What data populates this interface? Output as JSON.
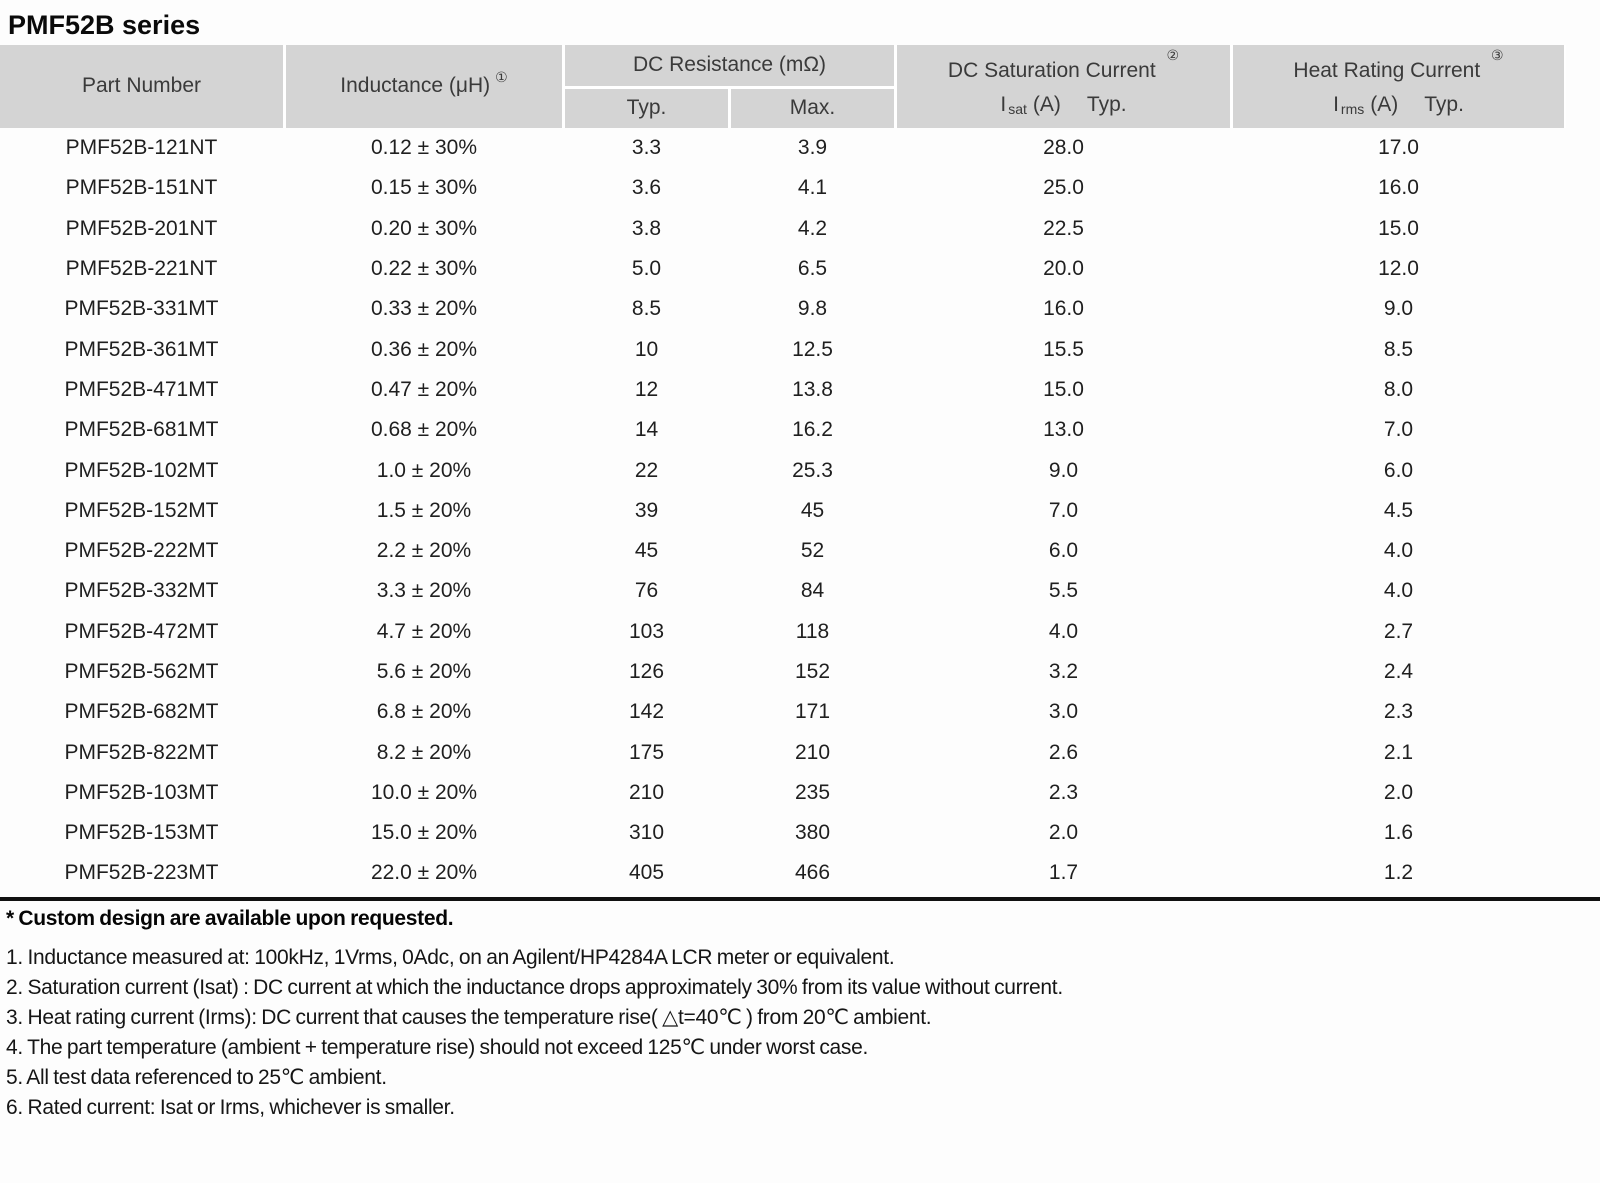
{
  "page": {
    "title": "PMF52B series"
  },
  "colors": {
    "header_bg": "#d4d4d4",
    "body_text": "#1f1f1f",
    "divider": "#111111"
  },
  "table": {
    "headers": {
      "part_number": "Part Number",
      "inductance": "Inductance (μH)",
      "inductance_note_ref": "①",
      "dc_resistance_group": "DC Resistance (mΩ)",
      "dcr_typ": "Typ.",
      "dcr_max": "Max.",
      "dc_saturation": "DC Saturation Current",
      "dc_saturation_note_ref": "②",
      "isat_symbol": "I",
      "isat_sub": "sat",
      "isat_unit": "(A)",
      "isat_typ": "Typ.",
      "heat_rating": "Heat Rating Current",
      "heat_rating_note_ref": "③",
      "irms_symbol": "I",
      "irms_sub": "rms",
      "irms_unit": "(A)",
      "irms_typ": "Typ."
    },
    "rows": [
      {
        "part_number": "PMF52B-121NT",
        "inductance": "0.12 ± 30%",
        "dcr_typ": "3.3",
        "dcr_max": "3.9",
        "isat": "28.0",
        "irms": "17.0"
      },
      {
        "part_number": "PMF52B-151NT",
        "inductance": "0.15 ± 30%",
        "dcr_typ": "3.6",
        "dcr_max": "4.1",
        "isat": "25.0",
        "irms": "16.0"
      },
      {
        "part_number": "PMF52B-201NT",
        "inductance": "0.20 ± 30%",
        "dcr_typ": "3.8",
        "dcr_max": "4.2",
        "isat": "22.5",
        "irms": "15.0"
      },
      {
        "part_number": "PMF52B-221NT",
        "inductance": "0.22 ± 30%",
        "dcr_typ": "5.0",
        "dcr_max": "6.5",
        "isat": "20.0",
        "irms": "12.0"
      },
      {
        "part_number": "PMF52B-331MT",
        "inductance": "0.33 ± 20%",
        "dcr_typ": "8.5",
        "dcr_max": "9.8",
        "isat": "16.0",
        "irms": "9.0"
      },
      {
        "part_number": "PMF52B-361MT",
        "inductance": "0.36 ± 20%",
        "dcr_typ": "10",
        "dcr_max": "12.5",
        "isat": "15.5",
        "irms": "8.5"
      },
      {
        "part_number": "PMF52B-471MT",
        "inductance": "0.47 ± 20%",
        "dcr_typ": "12",
        "dcr_max": "13.8",
        "isat": "15.0",
        "irms": "8.0"
      },
      {
        "part_number": "PMF52B-681MT",
        "inductance": "0.68 ± 20%",
        "dcr_typ": "14",
        "dcr_max": "16.2",
        "isat": "13.0",
        "irms": "7.0"
      },
      {
        "part_number": "PMF52B-102MT",
        "inductance": "1.0 ± 20%",
        "dcr_typ": "22",
        "dcr_max": "25.3",
        "isat": "9.0",
        "irms": "6.0"
      },
      {
        "part_number": "PMF52B-152MT",
        "inductance": "1.5 ± 20%",
        "dcr_typ": "39",
        "dcr_max": "45",
        "isat": "7.0",
        "irms": "4.5"
      },
      {
        "part_number": "PMF52B-222MT",
        "inductance": "2.2 ± 20%",
        "dcr_typ": "45",
        "dcr_max": "52",
        "isat": "6.0",
        "irms": "4.0"
      },
      {
        "part_number": "PMF52B-332MT",
        "inductance": "3.3 ± 20%",
        "dcr_typ": "76",
        "dcr_max": "84",
        "isat": "5.5",
        "irms": "4.0"
      },
      {
        "part_number": "PMF52B-472MT",
        "inductance": "4.7 ± 20%",
        "dcr_typ": "103",
        "dcr_max": "118",
        "isat": "4.0",
        "irms": "2.7"
      },
      {
        "part_number": "PMF52B-562MT",
        "inductance": "5.6 ± 20%",
        "dcr_typ": "126",
        "dcr_max": "152",
        "isat": "3.2",
        "irms": "2.4"
      },
      {
        "part_number": "PMF52B-682MT",
        "inductance": "6.8 ± 20%",
        "dcr_typ": "142",
        "dcr_max": "171",
        "isat": "3.0",
        "irms": "2.3"
      },
      {
        "part_number": "PMF52B-822MT",
        "inductance": "8.2 ± 20%",
        "dcr_typ": "175",
        "dcr_max": "210",
        "isat": "2.6",
        "irms": "2.1"
      },
      {
        "part_number": "PMF52B-103MT",
        "inductance": "10.0 ± 20%",
        "dcr_typ": "210",
        "dcr_max": "235",
        "isat": "2.3",
        "irms": "2.0"
      },
      {
        "part_number": "PMF52B-153MT",
        "inductance": "15.0 ± 20%",
        "dcr_typ": "310",
        "dcr_max": "380",
        "isat": "2.0",
        "irms": "1.6"
      },
      {
        "part_number": "PMF52B-223MT",
        "inductance": "22.0 ± 20%",
        "dcr_typ": "405",
        "dcr_max": "466",
        "isat": "1.7",
        "irms": "1.2"
      }
    ]
  },
  "footnotes": {
    "custom_note": "* Custom design are available upon requested.",
    "notes": [
      "1. Inductance measured at: 100kHz, 1Vrms, 0Adc, on an Agilent/HP4284A LCR meter or equivalent.",
      "2. Saturation current (Isat) : DC current at which the inductance drops approximately 30% from its value without current.",
      "3. Heat rating current (Irms): DC current that causes the temperature rise( △t=40℃ ) from 20℃ ambient.",
      "4. The part temperature (ambient + temperature rise) should not exceed 125℃ under worst case.",
      "5. All test data referenced to 25℃ ambient.",
      "6. Rated current: Isat or Irms, whichever is smaller."
    ]
  }
}
